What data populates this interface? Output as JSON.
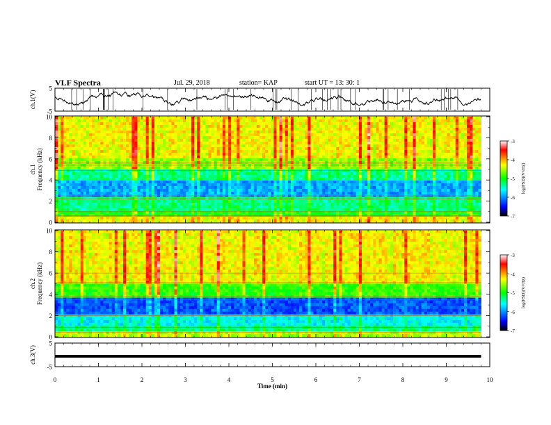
{
  "header": {
    "title": "VLF Spectra",
    "date": "Jul. 29, 2018",
    "station": "station= KAP",
    "start_ut": "start UT = 13: 30: 1"
  },
  "chart_data": [
    {
      "type": "line",
      "name": "ch1-waveform",
      "ylabel": "ch.1(V)",
      "ylim": [
        -5,
        5
      ],
      "y_ticks": [
        "5",
        "-5"
      ],
      "x_range_min": [
        0,
        9.8
      ],
      "trace_color": "#000000",
      "description_level_V": [
        -2.5,
        1.5
      ]
    },
    {
      "type": "heatmap",
      "name": "ch1-spectrogram",
      "ylabel": "ch.1\nFrequency (kHz)",
      "ylim": [
        0,
        10
      ],
      "y_ticks": [
        "0",
        "2",
        "4",
        "6",
        "8",
        "10"
      ],
      "x_range_min": [
        0,
        9.8
      ],
      "bands_kHz": [
        {
          "from": 0,
          "to": 0.5,
          "log_psd": -4.3
        },
        {
          "from": 0.5,
          "to": 1.0,
          "log_psd": -5.0
        },
        {
          "from": 1.0,
          "to": 2.5,
          "log_psd": -5.3
        },
        {
          "from": 2.5,
          "to": 4.0,
          "log_psd": -5.9
        },
        {
          "from": 4.0,
          "to": 5.0,
          "log_psd": -5.3
        },
        {
          "from": 5.0,
          "to": 6.0,
          "log_psd": -4.6
        },
        {
          "from": 6.0,
          "to": 10.0,
          "log_psd": -4.3
        }
      ],
      "colorbar": {
        "label": "log(PSD)(V²/Hz)",
        "min": -7,
        "max": -3,
        "ticks": [
          "-3",
          "-4",
          "-5",
          "-6",
          "-7"
        ]
      }
    },
    {
      "type": "heatmap",
      "name": "ch2-spectrogram",
      "ylabel": "ch.2\nFrequency (kHz)",
      "ylim": [
        0,
        10
      ],
      "y_ticks": [
        "0",
        "2",
        "4",
        "6",
        "8",
        "10"
      ],
      "x_range_min": [
        0,
        9.8
      ],
      "bands_kHz": [
        {
          "from": 0,
          "to": 0.4,
          "log_psd": -4.5
        },
        {
          "from": 0.4,
          "to": 1.0,
          "log_psd": -5.3
        },
        {
          "from": 1.0,
          "to": 2.0,
          "log_psd": -5.6
        },
        {
          "from": 2.0,
          "to": 3.6,
          "log_psd": -6.2
        },
        {
          "from": 3.6,
          "to": 5.0,
          "log_psd": -4.9
        },
        {
          "from": 5.0,
          "to": 10.0,
          "log_psd": -4.3
        }
      ],
      "colorbar": {
        "label": "log(PSD)(V²/Hz)",
        "min": -7,
        "max": -3,
        "ticks": [
          "-3",
          "-4",
          "-5",
          "-6",
          "-7"
        ]
      }
    },
    {
      "type": "line",
      "name": "ch3-waveform",
      "ylabel": "ch.3(V)",
      "ylim": [
        -5,
        5
      ],
      "y_ticks": [
        "5",
        "-5"
      ],
      "x_range_min": [
        0,
        9.8
      ],
      "level_V": -0.6,
      "trace_color": "#000000"
    }
  ],
  "x_axis": {
    "xlabel": "Time (min)",
    "xlim": [
      0,
      10
    ],
    "ticks": [
      "0",
      "1",
      "2",
      "3",
      "4",
      "5",
      "6",
      "7",
      "8",
      "9",
      "10"
    ]
  },
  "colors": {
    "colormap": [
      "#000000",
      "#0000ff",
      "#00ffff",
      "#00ff00",
      "#ffff00",
      "#ff0000",
      "#ffffff"
    ]
  }
}
